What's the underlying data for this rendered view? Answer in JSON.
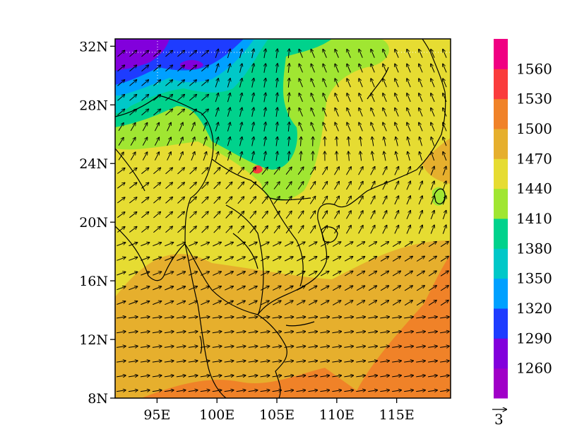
{
  "chart_data": {
    "type": "heatmap",
    "title": "",
    "xlabel": "",
    "ylabel": "",
    "x_ticks": [
      "95E",
      "100E",
      "105E",
      "110E",
      "115E"
    ],
    "x_tick_values": [
      95,
      100,
      105,
      110,
      115
    ],
    "y_ticks": [
      "8N",
      "12N",
      "16N",
      "20N",
      "24N",
      "28N",
      "32N"
    ],
    "y_tick_values": [
      8,
      12,
      16,
      20,
      24,
      28,
      32
    ],
    "lon_range": [
      91.5,
      119.5
    ],
    "lat_range": [
      8,
      32.5
    ],
    "legend_position": "right",
    "colorbar": {
      "labels": [
        "1260",
        "1290",
        "1320",
        "1350",
        "1380",
        "1410",
        "1440",
        "1470",
        "1500",
        "1530",
        "1560"
      ],
      "levels": [
        1260,
        1290,
        1320,
        1350,
        1380,
        1410,
        1440,
        1470,
        1500,
        1530,
        1560
      ],
      "colors": [
        "#a000c8",
        "#8200dc",
        "#1e3cff",
        "#00a0ff",
        "#00c8c8",
        "#00d28c",
        "#a0e632",
        "#e6dc32",
        "#e6af2d",
        "#f08228",
        "#fa3c3c",
        "#f00082"
      ]
    },
    "vector_reference": {
      "label": "3",
      "value": 3
    },
    "field_description": "geopotential height (shaded) with wind vectors; low values over the Tibetan Plateau in the north-west, high values over the South China Sea in the south-east",
    "grid_values_sample": [
      {
        "lon": 93,
        "lat": 31.5,
        "value": 1265
      },
      {
        "lon": 95,
        "lat": 30,
        "value": 1300
      },
      {
        "lon": 96,
        "lat": 28.5,
        "value": 1340
      },
      {
        "lon": 100,
        "lat": 27,
        "value": 1400
      },
      {
        "lon": 106,
        "lat": 30,
        "value": 1410
      },
      {
        "lon": 113,
        "lat": 30,
        "value": 1445
      },
      {
        "lon": 100,
        "lat": 20,
        "value": 1455
      },
      {
        "lon": 110,
        "lat": 20,
        "value": 1460
      },
      {
        "lon": 95,
        "lat": 14,
        "value": 1480
      },
      {
        "lon": 105,
        "lat": 12,
        "value": 1485
      },
      {
        "lon": 117,
        "lat": 12,
        "value": 1505
      },
      {
        "lon": 110,
        "lat": 9,
        "value": 1510
      }
    ]
  },
  "colors": {
    "coastline": "#000000",
    "vector": "#000000",
    "frame": "#000000"
  }
}
